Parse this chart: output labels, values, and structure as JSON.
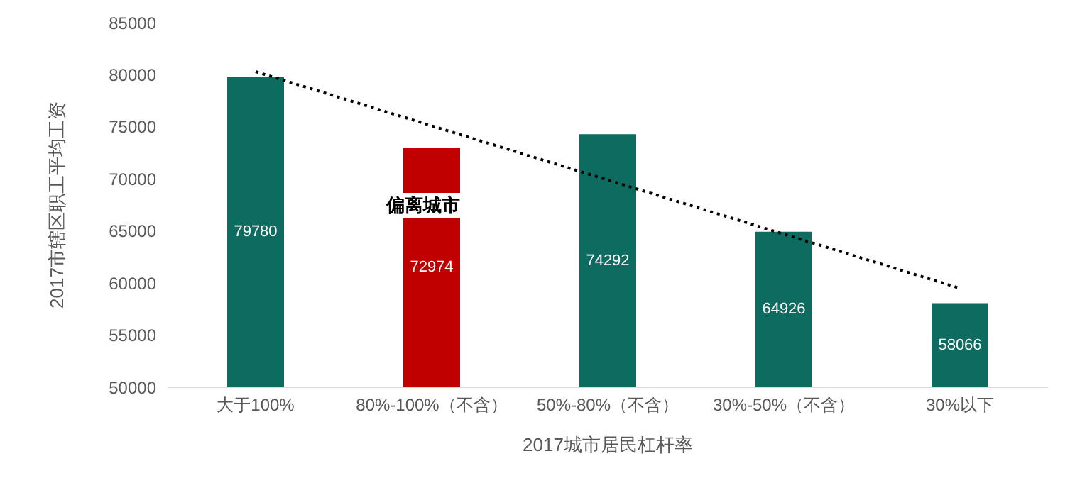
{
  "chart_data": {
    "type": "bar",
    "xlabel": "2017城市居民杠杆率",
    "ylabel": "2017市辖区职工平均工资",
    "categories": [
      "大于100%",
      "80%-100%（不含）",
      "50%-80%（不含）",
      "30%-50%（不含）",
      "30%以下"
    ],
    "series": [
      {
        "colors": [
          "#0e6b5f",
          "#c00000",
          "#0e6b5f",
          "#0e6b5f",
          "#0e6b5f"
        ],
        "values": [
          79780,
          72974,
          74292,
          64926,
          58066
        ],
        "value_labels": [
          "79780",
          "72974",
          "74292",
          "64926",
          "58066"
        ]
      },
      {
        "type": "line",
        "color": "#000000",
        "line_style": "dotted",
        "marker": "none",
        "values": [
          80300,
          75100,
          69900,
          64700,
          59500
        ]
      }
    ],
    "ylim": [
      50000,
      85000
    ],
    "yticks": [
      50000,
      55000,
      60000,
      65000,
      70000,
      75000,
      80000,
      85000
    ],
    "grid": false,
    "legend": false,
    "annotations": [
      "偏离城市"
    ]
  }
}
